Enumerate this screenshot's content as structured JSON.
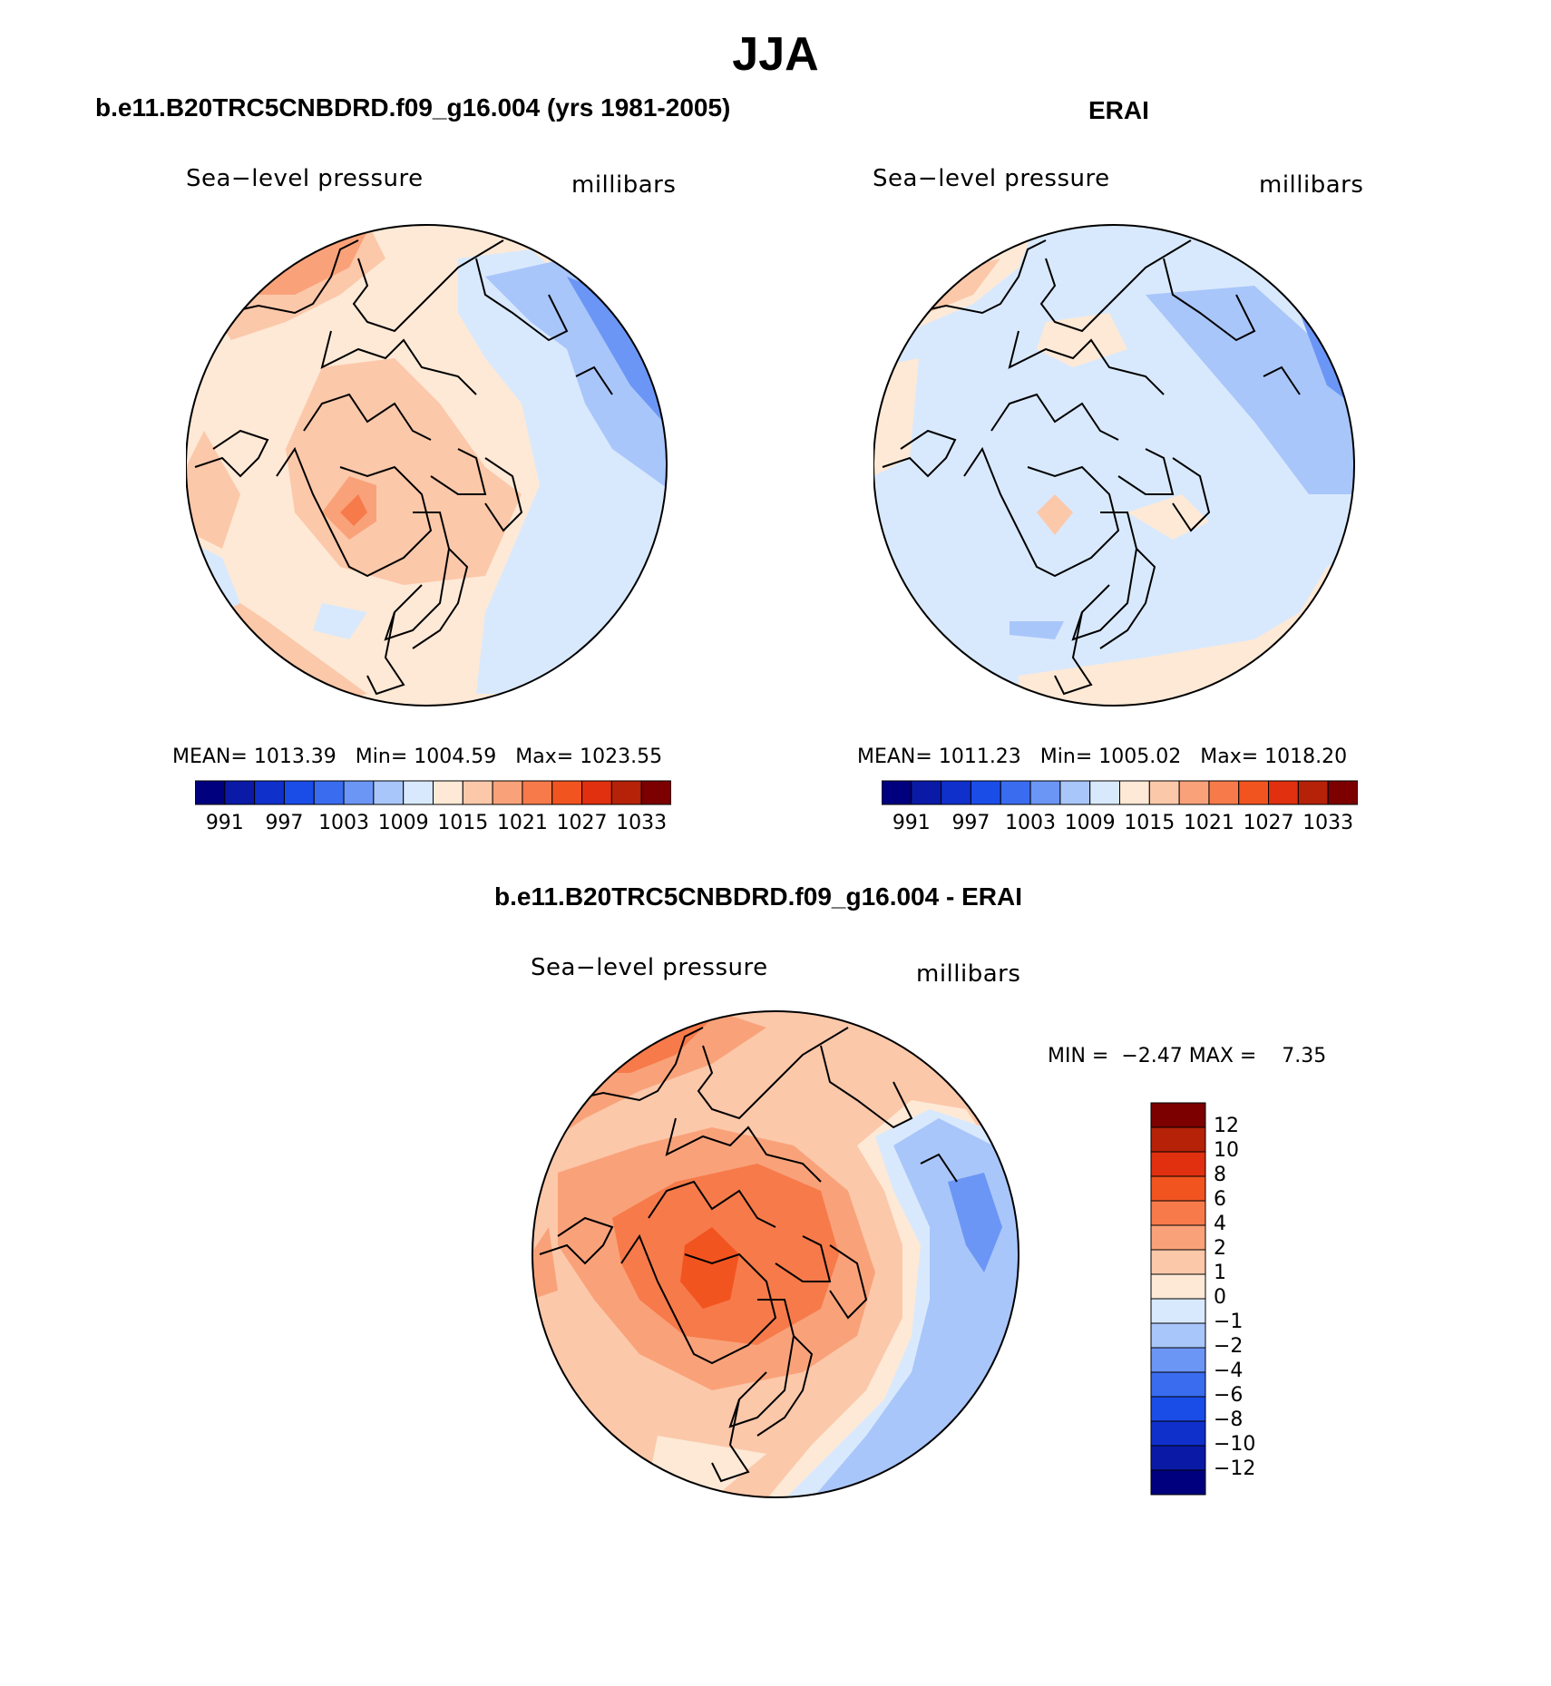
{
  "season_title": "JJA",
  "panels": [
    {
      "id": "model",
      "title": "b.e11.B20TRC5CNBDRD.f09_g16.004 (yrs 1981-2005)",
      "variable": "Sea−level pressure",
      "units": "millibars",
      "stats": {
        "mean_label": "MEAN=",
        "mean": "1013.39",
        "min_label": "Min=",
        "min": "1004.59",
        "max_label": "Max=",
        "max": "1023.55"
      },
      "colorbar_ticks": [
        "991",
        "997",
        "1003",
        "1009",
        "1015",
        "1021",
        "1027",
        "1033"
      ]
    },
    {
      "id": "obs",
      "title": "ERAI",
      "variable": "Sea−level pressure",
      "units": "millibars",
      "stats": {
        "mean_label": "MEAN=",
        "mean": "1011.23",
        "min_label": "Min=",
        "min": "1005.02",
        "max_label": "Max=",
        "max": "1018.20"
      },
      "colorbar_ticks": [
        "991",
        "997",
        "1003",
        "1009",
        "1015",
        "1021",
        "1027",
        "1033"
      ]
    },
    {
      "id": "diff",
      "title": "b.e11.B20TRC5CNBDRD.f09_g16.004 - ERAI",
      "variable": "Sea−level pressure",
      "units": "millibars",
      "stats": {
        "min_label": "MIN =",
        "min": "−2.47",
        "max_label": "MAX =",
        "max": "7.35"
      },
      "colorbar_ticks": [
        "12",
        "10",
        "8",
        "6",
        "4",
        "2",
        "1",
        "0",
        "−1",
        "−2",
        "−4",
        "−6",
        "−8",
        "−10",
        "−12"
      ]
    }
  ],
  "palette_16": [
    "#00007f",
    "#0a1aa6",
    "#1030cc",
    "#1a4de8",
    "#3a6cf0",
    "#6b96f5",
    "#a9c6fa",
    "#d9e9fd",
    "#fde9d6",
    "#fcc8aa",
    "#f9a27a",
    "#f77a4a",
    "#f25420",
    "#e03010",
    "#b52208",
    "#7c0000"
  ],
  "map_colors": {
    "base_warm_light": "#fde9d6",
    "warm_2": "#fcc8aa",
    "warm_3": "#f9a27a",
    "warm_4": "#f77a4a",
    "warm_5": "#f25420",
    "cool_light": "#d9e9fd",
    "cool_2": "#a9c6fa",
    "cool_3": "#6b96f5"
  }
}
